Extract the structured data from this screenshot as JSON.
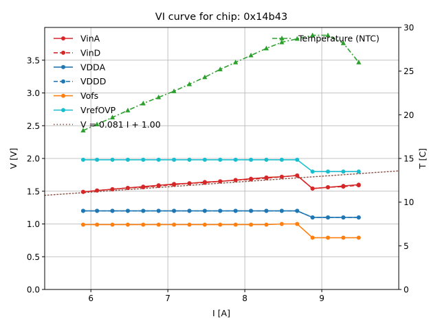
{
  "chart_data": {
    "type": "line",
    "title": "VI curve for chip: 0x14b43",
    "xlabel": "I [A]",
    "ylabel": "V [V]",
    "y2label": "T [C]",
    "xlim": [
      5.4,
      10.0
    ],
    "ylim": [
      0.0,
      4.0
    ],
    "y2lim": [
      0,
      30
    ],
    "xticks": [
      6,
      7,
      8,
      9
    ],
    "yticks": [
      0.0,
      0.5,
      1.0,
      1.5,
      2.0,
      2.5,
      3.0,
      3.5
    ],
    "y2ticks": [
      0,
      5,
      10,
      15,
      20,
      25,
      30
    ],
    "grid": true,
    "legend_position": "top-left",
    "x": [
      5.9,
      6.08,
      6.28,
      6.48,
      6.68,
      6.88,
      7.08,
      7.28,
      7.48,
      7.68,
      7.88,
      8.08,
      8.28,
      8.48,
      8.68,
      8.88,
      9.08,
      9.28,
      9.48
    ],
    "series": [
      {
        "name": "VinA",
        "color": "#d62728",
        "style": "solid",
        "marker": "circle",
        "values": [
          1.49,
          1.51,
          1.53,
          1.55,
          1.57,
          1.59,
          1.61,
          1.62,
          1.64,
          1.65,
          1.67,
          1.69,
          1.71,
          1.72,
          1.74,
          1.54,
          1.56,
          1.58,
          1.6
        ]
      },
      {
        "name": "VinD",
        "color": "#d62728",
        "style": "dashed",
        "marker": "circle",
        "values": [
          1.49,
          1.51,
          1.53,
          1.55,
          1.56,
          1.58,
          1.6,
          1.62,
          1.63,
          1.65,
          1.67,
          1.68,
          1.7,
          1.72,
          1.74,
          1.54,
          1.56,
          1.57,
          1.59
        ]
      },
      {
        "name": "VDDA",
        "color": "#1f77b4",
        "style": "solid",
        "marker": "circle",
        "values": [
          1.2,
          1.2,
          1.2,
          1.2,
          1.2,
          1.2,
          1.2,
          1.2,
          1.2,
          1.2,
          1.2,
          1.2,
          1.2,
          1.2,
          1.2,
          1.1,
          1.1,
          1.1,
          1.1
        ]
      },
      {
        "name": "VDDD",
        "color": "#1f77b4",
        "style": "dashed",
        "marker": "circle",
        "values": [
          1.2,
          1.2,
          1.2,
          1.2,
          1.2,
          1.2,
          1.2,
          1.2,
          1.2,
          1.2,
          1.2,
          1.2,
          1.2,
          1.2,
          1.2,
          1.1,
          1.1,
          1.1,
          1.1
        ]
      },
      {
        "name": "Vofs",
        "color": "#ff7f0e",
        "style": "solid",
        "marker": "circle",
        "values": [
          0.99,
          0.99,
          0.99,
          0.99,
          0.99,
          0.99,
          0.99,
          0.99,
          0.99,
          0.99,
          0.99,
          0.99,
          0.99,
          1.0,
          1.0,
          0.79,
          0.79,
          0.79,
          0.79
        ]
      },
      {
        "name": "VrefOVP",
        "color": "#17becf",
        "style": "solid",
        "marker": "circle",
        "values": [
          1.98,
          1.98,
          1.98,
          1.98,
          1.98,
          1.98,
          1.98,
          1.98,
          1.98,
          1.98,
          1.98,
          1.98,
          1.98,
          1.98,
          1.98,
          1.8,
          1.8,
          1.8,
          1.8
        ]
      }
    ],
    "fit": {
      "name": "V = 0.081 I + 1.00",
      "slope": 0.081,
      "intercept": 1.0,
      "color": "#8c564b",
      "style": "dotted"
    },
    "temperature": {
      "name": "Temperature (NTC)",
      "color": "#2ca02c",
      "style": "dashdot",
      "marker": "triangle",
      "axis": "right",
      "values": [
        18.2,
        18.9,
        19.7,
        20.5,
        21.3,
        22.0,
        22.7,
        23.5,
        24.3,
        25.2,
        26.0,
        26.8,
        27.6,
        28.3,
        28.7,
        29.1,
        29.1,
        28.2,
        26.0
      ]
    }
  }
}
